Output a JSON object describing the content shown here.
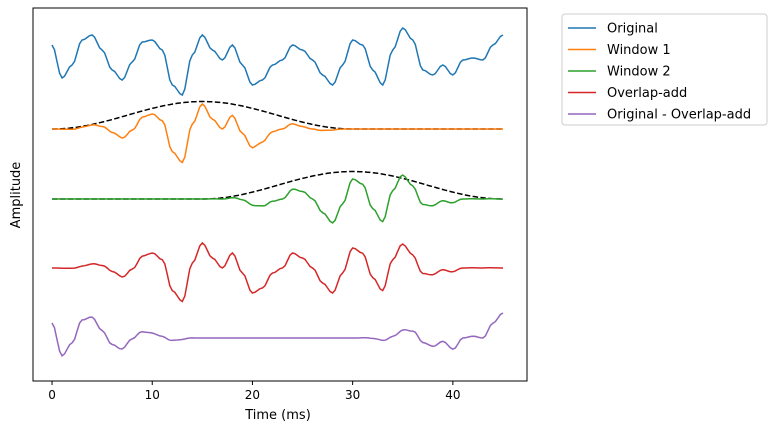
{
  "chart_data": {
    "type": "line",
    "title": "",
    "xlabel": "Time (ms)",
    "ylabel": "Amplitude",
    "xlim": [
      -1.9,
      47.4
    ],
    "ylim": [
      -12.84,
      2.08
    ],
    "xticks": [
      0,
      10,
      20,
      30,
      40
    ],
    "xtick_labels": [
      "0",
      "10",
      "20",
      "30",
      "40"
    ],
    "yticks": [],
    "grid": false,
    "legend_position": "outside-top-right",
    "time_ms": [
      0,
      1,
      2,
      3,
      4,
      5,
      6,
      7,
      8,
      9,
      10,
      11,
      12,
      13,
      14,
      15,
      16,
      17,
      18,
      19,
      20,
      21,
      22,
      23,
      24,
      25,
      26,
      27,
      28,
      29,
      30,
      31,
      32,
      33,
      34,
      35,
      36,
      37,
      38,
      39,
      40,
      41,
      42,
      43,
      44,
      45
    ],
    "original": [
      0.6,
      -0.72,
      -0.2,
      0.8,
      1.0,
      0.4,
      -0.4,
      -0.8,
      -0.08,
      0.72,
      0.8,
      0.4,
      -1.0,
      -1.4,
      0.2,
      1.0,
      0.4,
      0,
      0.6,
      -0.2,
      -1.0,
      -0.8,
      -0.2,
      0,
      0.6,
      0.4,
      0,
      -0.6,
      -1.0,
      -0.2,
      0.8,
      0.6,
      -0.4,
      -1.0,
      0.4,
      1.28,
      0.8,
      -0.4,
      -0.6,
      -0.2,
      -0.6,
      0,
      0.08,
      0,
      0.6,
      1.0
    ],
    "windows": [
      {
        "name": "Window 1",
        "type": "hann",
        "start_ms": 0,
        "end_ms": 30,
        "peak": 1.1
      },
      {
        "name": "Window 2",
        "type": "hann",
        "start_ms": 15,
        "end_ms": 45,
        "peak": 1.1
      }
    ],
    "trace_offsets": {
      "Original": 0,
      "Window 1": -2.76,
      "Window 2": -5.56,
      "Overlap-add": -8.32,
      "Original - Overlap-add": -11.12
    },
    "series": [
      {
        "name": "Original",
        "color": "#1f77b4"
      },
      {
        "name": "Window 1",
        "color": "#ff7f0e"
      },
      {
        "name": "Window 2",
        "color": "#2ca02c"
      },
      {
        "name": "Overlap-add",
        "color": "#d62728"
      },
      {
        "name": "Original - Overlap-add",
        "color": "#9467bd"
      }
    ],
    "window_envelope_style": {
      "color": "#000000",
      "dash": "dashed"
    }
  }
}
